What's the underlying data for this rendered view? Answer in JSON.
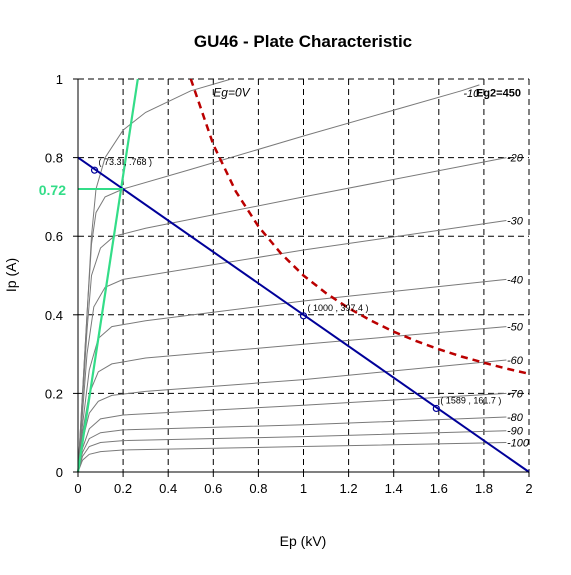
{
  "chart_data": {
    "type": "line",
    "title": "GU46 - Plate Characteristic",
    "xlabel": "Ep (kV)",
    "ylabel": "Ip (A)",
    "xlim": [
      0,
      2
    ],
    "ylim": [
      0,
      1
    ],
    "x_ticks": [
      "0",
      "0.2",
      "0.4",
      "0.6",
      "0.8",
      "1",
      "1.2",
      "1.4",
      "1.6",
      "1.8",
      "2"
    ],
    "y_ticks": [
      "0",
      "0.2",
      "0.4",
      "0.6",
      "0.8",
      "1"
    ],
    "grid": "dashed",
    "screen_grid_label": "Eg2=450",
    "zero_grid_label": "Eg=0V",
    "curves": [
      {
        "label": "",
        "points": [
          [
            0,
            0
          ],
          [
            0.02,
            0.2
          ],
          [
            0.04,
            0.4
          ],
          [
            0.06,
            0.6
          ],
          [
            0.08,
            0.72
          ],
          [
            0.12,
            0.8
          ],
          [
            0.2,
            0.87
          ],
          [
            0.3,
            0.915
          ],
          [
            0.5,
            0.97
          ],
          [
            0.68,
            1.0
          ]
        ]
      },
      {
        "label": "-10",
        "points": [
          [
            0,
            0
          ],
          [
            0.02,
            0.2
          ],
          [
            0.04,
            0.4
          ],
          [
            0.06,
            0.58
          ],
          [
            0.08,
            0.66
          ],
          [
            0.12,
            0.7
          ],
          [
            0.2,
            0.72
          ],
          [
            0.5,
            0.77
          ],
          [
            1.0,
            0.855
          ],
          [
            1.7,
            0.97
          ],
          [
            1.78,
            0.985
          ]
        ]
      },
      {
        "label": "-20",
        "points": [
          [
            0,
            0
          ],
          [
            0.02,
            0.18
          ],
          [
            0.04,
            0.36
          ],
          [
            0.06,
            0.5
          ],
          [
            0.1,
            0.57
          ],
          [
            0.16,
            0.6
          ],
          [
            0.3,
            0.62
          ],
          [
            1.0,
            0.7
          ],
          [
            1.9,
            0.8
          ]
        ]
      },
      {
        "label": "-30",
        "points": [
          [
            0,
            0
          ],
          [
            0.02,
            0.15
          ],
          [
            0.04,
            0.3
          ],
          [
            0.07,
            0.42
          ],
          [
            0.12,
            0.47
          ],
          [
            0.2,
            0.49
          ],
          [
            1.0,
            0.565
          ],
          [
            1.9,
            0.64
          ]
        ]
      },
      {
        "label": "-40",
        "points": [
          [
            0,
            0
          ],
          [
            0.02,
            0.12
          ],
          [
            0.05,
            0.26
          ],
          [
            0.09,
            0.34
          ],
          [
            0.15,
            0.37
          ],
          [
            0.3,
            0.385
          ],
          [
            1.0,
            0.435
          ],
          [
            1.9,
            0.49
          ]
        ]
      },
      {
        "label": "-50",
        "points": [
          [
            0,
            0
          ],
          [
            0.02,
            0.1
          ],
          [
            0.05,
            0.2
          ],
          [
            0.09,
            0.255
          ],
          [
            0.15,
            0.275
          ],
          [
            0.3,
            0.29
          ],
          [
            1.0,
            0.325
          ],
          [
            1.9,
            0.37
          ]
        ]
      },
      {
        "label": "-60",
        "points": [
          [
            0,
            0
          ],
          [
            0.02,
            0.08
          ],
          [
            0.05,
            0.15
          ],
          [
            0.09,
            0.18
          ],
          [
            0.15,
            0.195
          ],
          [
            0.3,
            0.205
          ],
          [
            1.0,
            0.235
          ],
          [
            1.9,
            0.285
          ]
        ]
      },
      {
        "label": "-70",
        "points": [
          [
            0,
            0
          ],
          [
            0.02,
            0.06
          ],
          [
            0.05,
            0.11
          ],
          [
            0.1,
            0.135
          ],
          [
            0.2,
            0.145
          ],
          [
            1.0,
            0.17
          ],
          [
            1.9,
            0.2
          ]
        ]
      },
      {
        "label": "-80",
        "points": [
          [
            0,
            0
          ],
          [
            0.02,
            0.05
          ],
          [
            0.05,
            0.085
          ],
          [
            0.1,
            0.1
          ],
          [
            0.2,
            0.107
          ],
          [
            1.0,
            0.12
          ],
          [
            1.9,
            0.14
          ]
        ]
      },
      {
        "label": "-90",
        "points": [
          [
            0,
            0
          ],
          [
            0.02,
            0.04
          ],
          [
            0.05,
            0.065
          ],
          [
            0.1,
            0.075
          ],
          [
            0.2,
            0.08
          ],
          [
            1.0,
            0.09
          ],
          [
            1.9,
            0.105
          ]
        ]
      },
      {
        "label": "-100",
        "points": [
          [
            0,
            0
          ],
          [
            0.02,
            0.03
          ],
          [
            0.05,
            0.045
          ],
          [
            0.1,
            0.052
          ],
          [
            0.2,
            0.056
          ],
          [
            1.0,
            0.065
          ],
          [
            1.9,
            0.075
          ]
        ]
      }
    ],
    "load_line": {
      "points": [
        [
          0,
          0.8
        ],
        [
          2,
          0
        ]
      ],
      "color": "#000099"
    },
    "min_voltage_line": {
      "points": [
        [
          0,
          0
        ],
        [
          0.265,
          1.0
        ]
      ],
      "color": "#33dd88"
    },
    "dissipation_curve": {
      "points": [
        [
          0.5,
          1.0
        ],
        [
          0.6,
          0.833
        ],
        [
          0.7,
          0.714
        ],
        [
          0.8,
          0.625
        ],
        [
          0.9,
          0.556
        ],
        [
          1.0,
          0.5
        ],
        [
          1.1,
          0.455
        ],
        [
          1.2,
          0.417
        ],
        [
          1.3,
          0.385
        ],
        [
          1.4,
          0.357
        ],
        [
          1.5,
          0.333
        ],
        [
          1.6,
          0.3125
        ],
        [
          1.7,
          0.294
        ],
        [
          1.8,
          0.278
        ],
        [
          1.9,
          0.263
        ],
        [
          2.0,
          0.25
        ]
      ],
      "color": "#bb0000"
    },
    "markers": [
      {
        "x": 0.0733,
        "y": 0.768,
        "label": "( 73.3 , .768 )"
      },
      {
        "x": 1.0,
        "y": 0.3974,
        "label": "( 1000 , 397.4 )"
      },
      {
        "x": 1.589,
        "y": 0.1617,
        "label": "( 1589 , 161.7 )"
      }
    ],
    "highlight": {
      "value_label": "0.72",
      "y": 0.72,
      "x": 0.2,
      "color": "#33dd88"
    }
  }
}
